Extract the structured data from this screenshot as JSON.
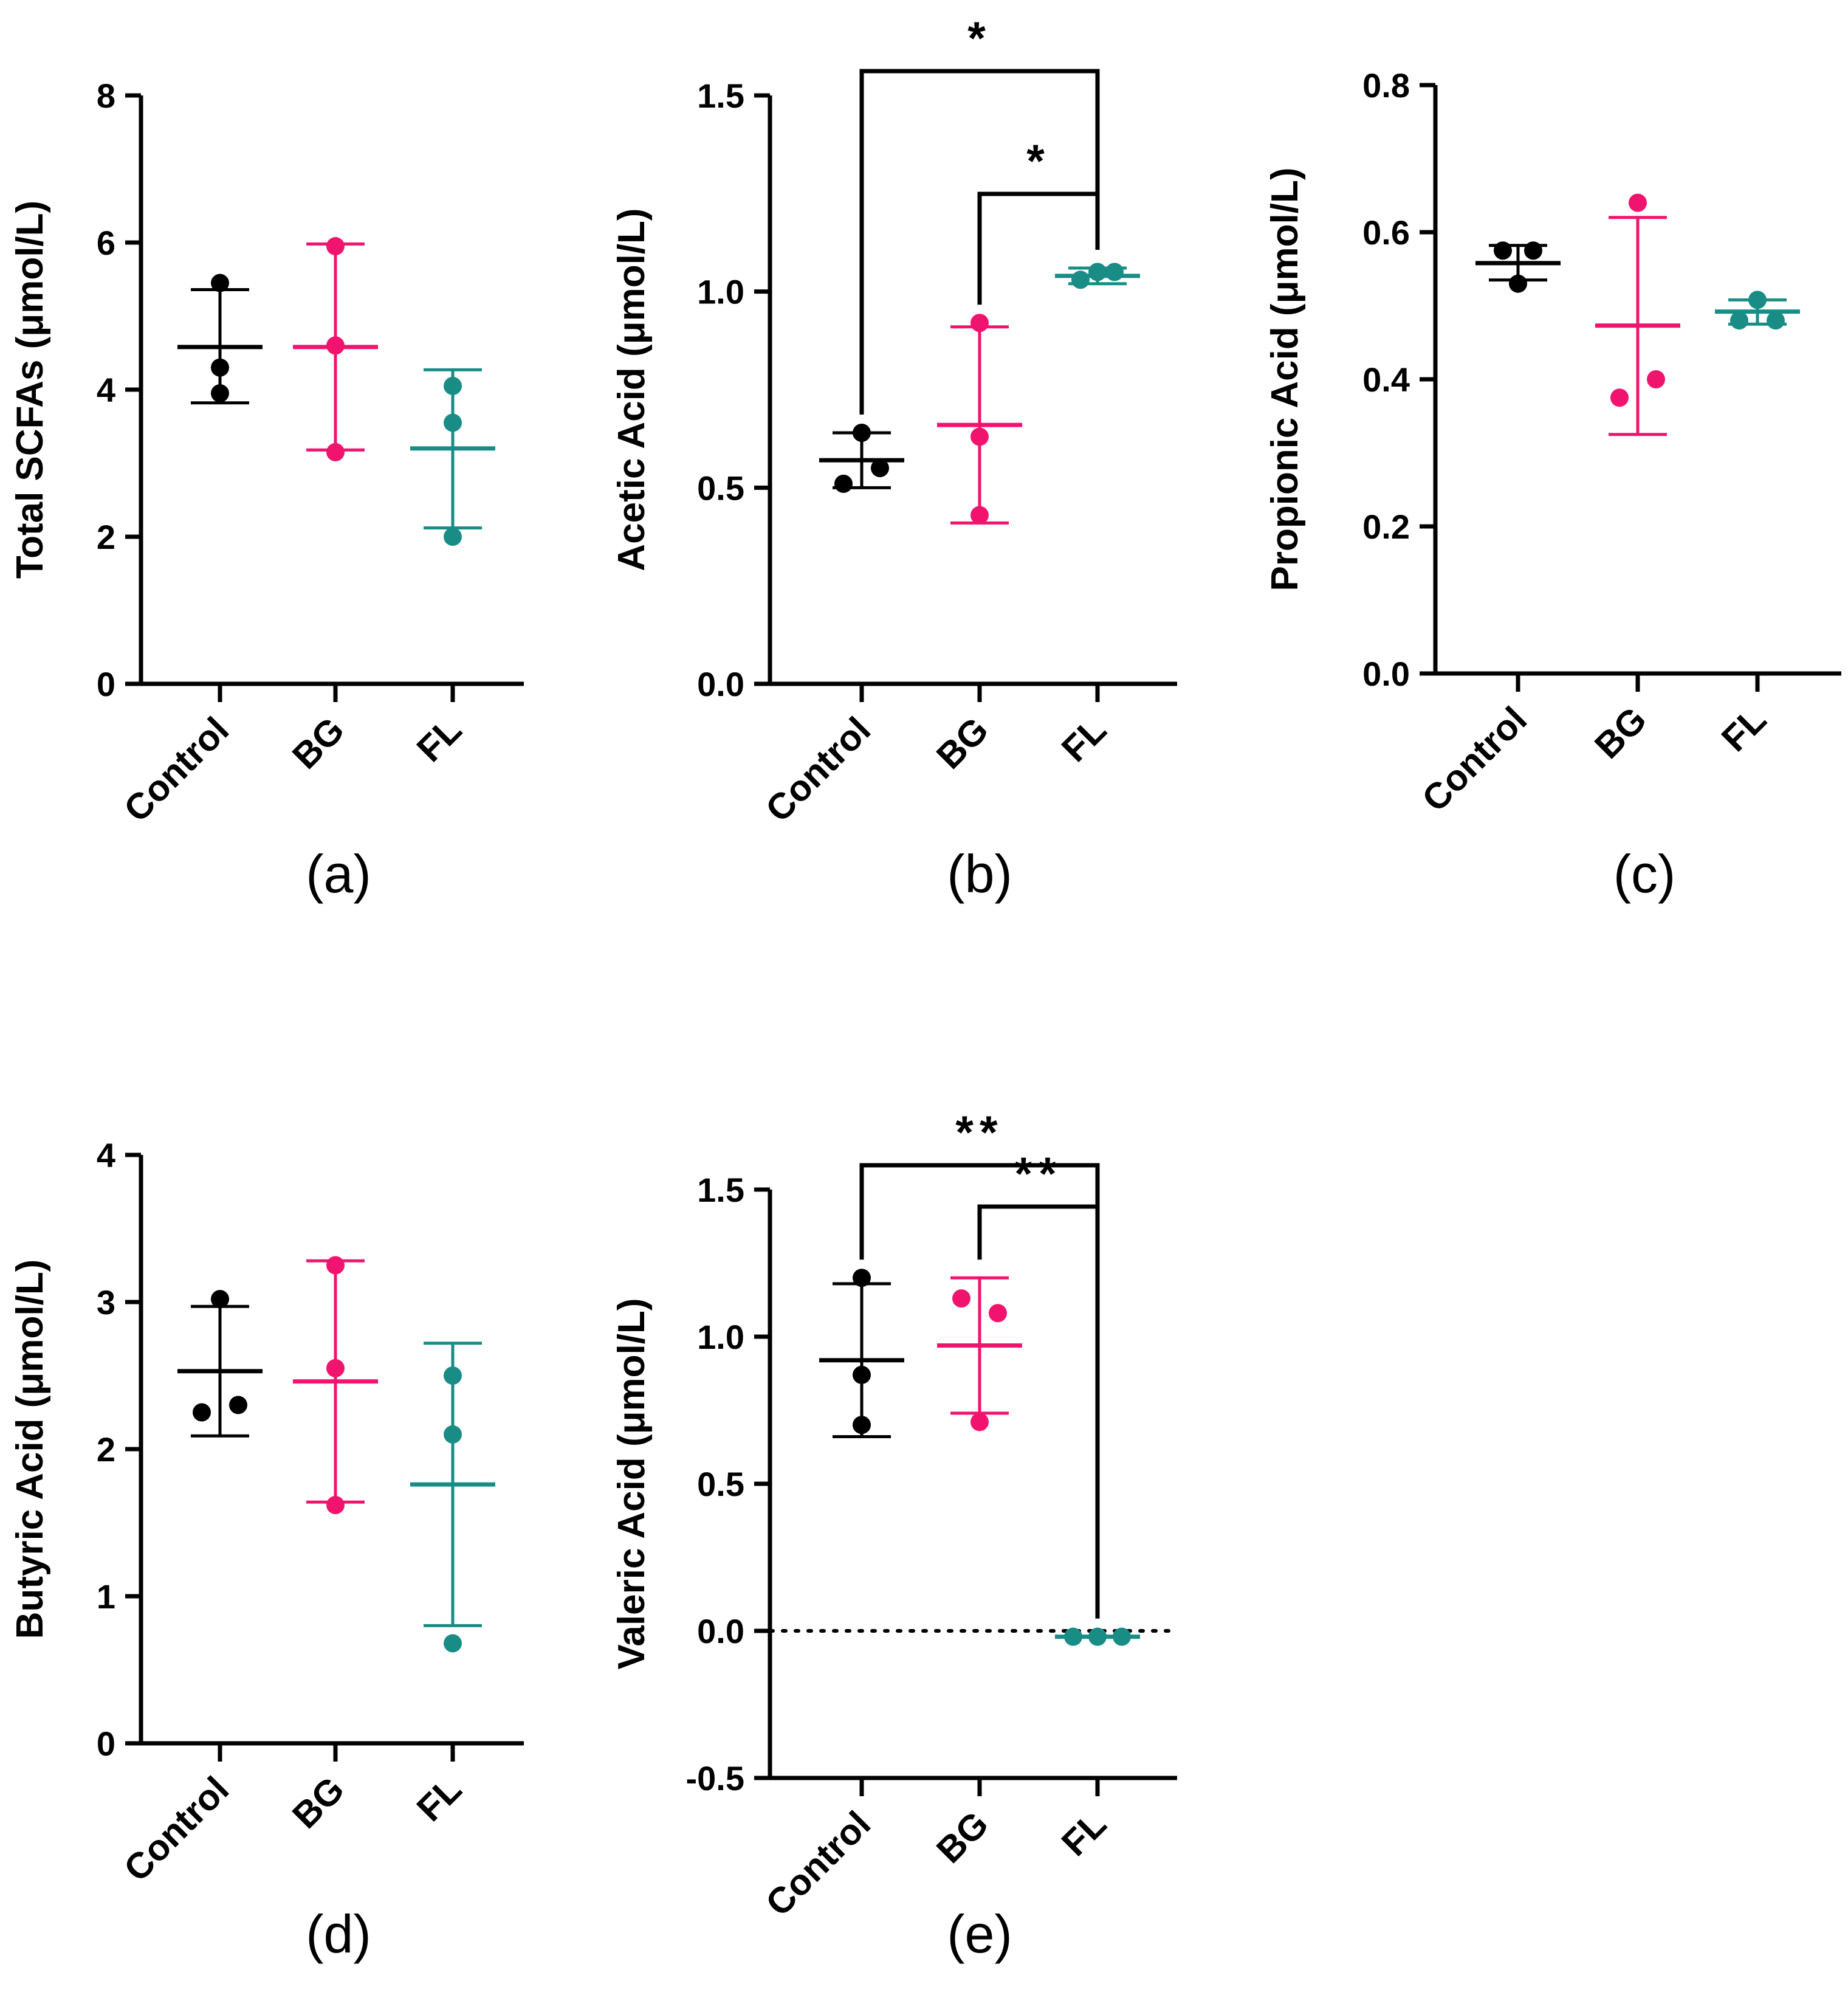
{
  "colors": {
    "Control": "#000000",
    "BG": "#f0146e",
    "FL": "#1a8c86"
  },
  "chart_data": [
    {
      "type": "scatter",
      "panel_label": "(a)",
      "ylabel": "Total SCFAs (μmol/L)",
      "categories": [
        "Control",
        "BG",
        "FL"
      ],
      "ylim": [
        0,
        8
      ],
      "yticks": [
        0,
        2,
        4,
        6,
        8
      ],
      "ytick_labels": [
        "0",
        "2",
        "4",
        "6",
        "8"
      ],
      "series": [
        {
          "name": "Control",
          "points": [
            5.45,
            4.3,
            3.95
          ],
          "mean": 4.58,
          "sd_low": 3.82,
          "sd_high": 5.36
        },
        {
          "name": "BG",
          "points": [
            5.95,
            4.6,
            3.15
          ],
          "mean": 4.58,
          "sd_low": 3.18,
          "sd_high": 5.98
        },
        {
          "name": "FL",
          "points": [
            4.05,
            3.55,
            2.0
          ],
          "mean": 3.2,
          "sd_low": 2.12,
          "sd_high": 4.27
        }
      ],
      "significance": []
    },
    {
      "type": "scatter",
      "panel_label": "(b)",
      "ylabel": "Acetic Acid (μmol/L)",
      "categories": [
        "Control",
        "BG",
        "FL"
      ],
      "ylim": [
        0,
        1.5
      ],
      "yticks": [
        0,
        0.5,
        1.0,
        1.5
      ],
      "ytick_labels": [
        "0.0",
        "0.5",
        "1.0",
        "1.5"
      ],
      "series": [
        {
          "name": "Control",
          "points": [
            0.64,
            0.51,
            0.55
          ],
          "mean": 0.57,
          "sd_low": 0.5,
          "sd_high": 0.64
        },
        {
          "name": "BG",
          "points": [
            0.92,
            0.63,
            0.43
          ],
          "mean": 0.66,
          "sd_low": 0.41,
          "sd_high": 0.91
        },
        {
          "name": "FL",
          "points": [
            1.03,
            1.05,
            1.05
          ],
          "mean": 1.04,
          "sd_low": 1.02,
          "sd_high": 1.06
        }
      ],
      "significance": [
        {
          "from": "Control",
          "to": "FL",
          "label": "*",
          "level": 1
        },
        {
          "from": "BG",
          "to": "FL",
          "label": "*",
          "level": 0
        }
      ]
    },
    {
      "type": "scatter",
      "panel_label": "(c)",
      "ylabel": "Propionic Acid (μmol/L)",
      "categories": [
        "Control",
        "BG",
        "FL"
      ],
      "ylim": [
        0,
        0.8
      ],
      "yticks": [
        0,
        0.2,
        0.4,
        0.6,
        0.8
      ],
      "ytick_labels": [
        "0.0",
        "0.2",
        "0.4",
        "0.6",
        "0.8"
      ],
      "series": [
        {
          "name": "Control",
          "points": [
            0.575,
            0.575,
            0.53
          ],
          "mean": 0.558,
          "sd_low": 0.535,
          "sd_high": 0.582
        },
        {
          "name": "BG",
          "points": [
            0.64,
            0.4,
            0.375
          ],
          "mean": 0.473,
          "sd_low": 0.325,
          "sd_high": 0.62
        },
        {
          "name": "FL",
          "points": [
            0.508,
            0.48,
            0.48
          ],
          "mean": 0.492,
          "sd_low": 0.475,
          "sd_high": 0.508
        }
      ],
      "significance": []
    },
    {
      "type": "scatter",
      "panel_label": "(d)",
      "ylabel": "Butyric Acid (μmol/L)",
      "categories": [
        "Control",
        "BG",
        "FL"
      ],
      "ylim": [
        0,
        4
      ],
      "yticks": [
        0,
        1,
        2,
        3,
        4
      ],
      "ytick_labels": [
        "0",
        "1",
        "2",
        "3",
        "4"
      ],
      "series": [
        {
          "name": "Control",
          "points": [
            3.02,
            2.25,
            2.3
          ],
          "mean": 2.53,
          "sd_low": 2.09,
          "sd_high": 2.97
        },
        {
          "name": "BG",
          "points": [
            3.25,
            2.55,
            1.62
          ],
          "mean": 2.46,
          "sd_low": 1.64,
          "sd_high": 3.28
        },
        {
          "name": "FL",
          "points": [
            2.5,
            2.1,
            0.68
          ],
          "mean": 1.76,
          "sd_low": 0.8,
          "sd_high": 2.72
        }
      ],
      "significance": []
    },
    {
      "type": "scatter",
      "panel_label": "(e)",
      "ylabel": "Valeric Acid (μmol/L)",
      "categories": [
        "Control",
        "BG",
        "FL"
      ],
      "ylim": [
        -0.5,
        1.5
      ],
      "yticks": [
        -0.5,
        0,
        0.5,
        1.0,
        1.5
      ],
      "ytick_labels": [
        "-0.5",
        "0.0",
        "0.5",
        "1.0",
        "1.5"
      ],
      "zero_line": true,
      "series": [
        {
          "name": "Control",
          "points": [
            1.2,
            0.87,
            0.7
          ],
          "mean": 0.92,
          "sd_low": 0.66,
          "sd_high": 1.18
        },
        {
          "name": "BG",
          "points": [
            1.13,
            1.08,
            0.71
          ],
          "mean": 0.97,
          "sd_low": 0.74,
          "sd_high": 1.2
        },
        {
          "name": "FL",
          "points": [
            -0.02,
            -0.02,
            -0.02
          ],
          "mean": -0.02,
          "sd_low": -0.02,
          "sd_high": -0.02
        }
      ],
      "significance": [
        {
          "from": "Control",
          "to": "FL",
          "label": "**",
          "level": 1
        },
        {
          "from": "BG",
          "to": "FL",
          "label": "**",
          "level": 0
        }
      ]
    }
  ]
}
